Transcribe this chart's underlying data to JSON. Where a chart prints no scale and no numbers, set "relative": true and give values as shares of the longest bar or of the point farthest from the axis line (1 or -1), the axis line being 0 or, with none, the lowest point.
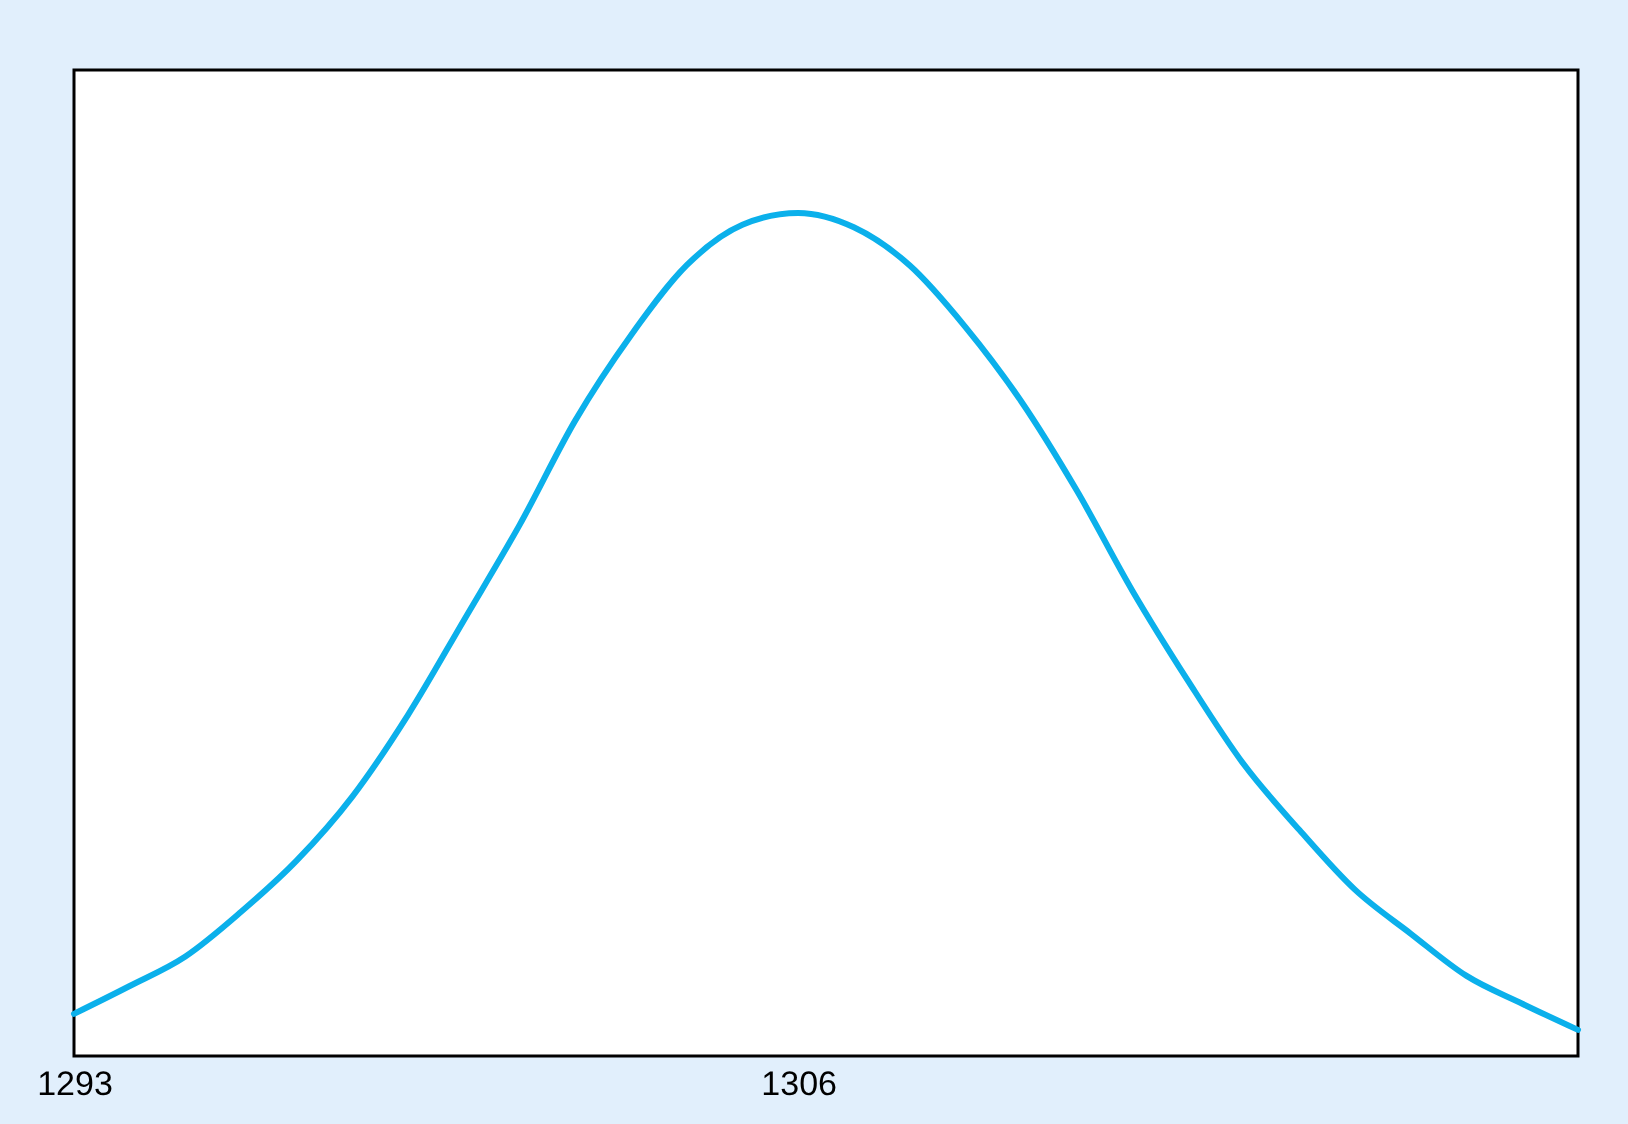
{
  "chart_data": {
    "type": "line",
    "relative": true,
    "color": "#0bb0eb",
    "line_style": "solid",
    "x": [
      1293,
      1294,
      1295,
      1296,
      1297,
      1298,
      1299,
      1300,
      1301,
      1302,
      1303,
      1304,
      1305,
      1306,
      1307,
      1308,
      1309,
      1310,
      1311,
      1312,
      1313,
      1314,
      1315,
      1316,
      1317,
      1318,
      1319,
      1320
    ],
    "values": [
      0.05,
      0.083,
      0.118,
      0.171,
      0.232,
      0.308,
      0.405,
      0.517,
      0.63,
      0.754,
      0.855,
      0.938,
      0.986,
      1,
      0.983,
      0.938,
      0.865,
      0.777,
      0.671,
      0.552,
      0.445,
      0.346,
      0.268,
      0.197,
      0.145,
      0.095,
      0.062,
      0.031
    ],
    "xlim": [
      1293,
      1320
    ],
    "xticks": [
      1293,
      1306
    ]
  }
}
